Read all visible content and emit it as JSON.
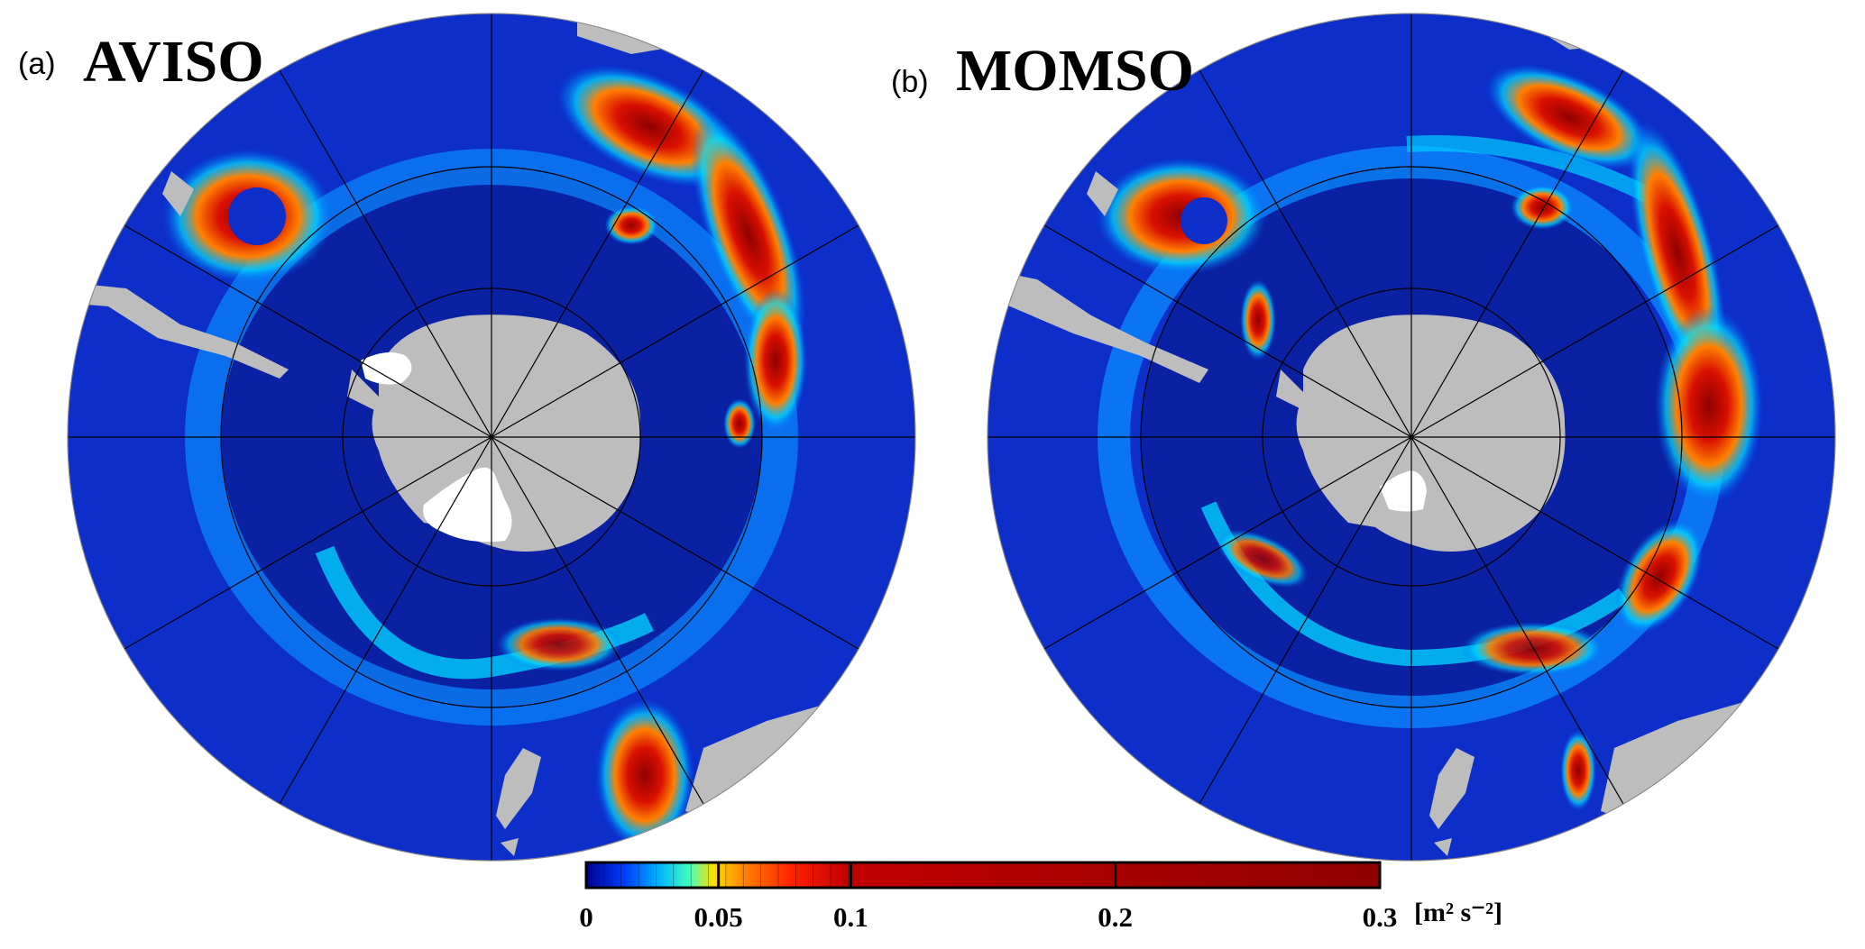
{
  "panels": [
    {
      "letter": "(a)",
      "name": "AVISO"
    },
    {
      "letter": "(b)",
      "name": "MOMSO"
    }
  ],
  "colorbar": {
    "ticks": [
      "0",
      "0.05",
      "0.1",
      "0.2",
      "0.3"
    ],
    "tick_values": [
      0,
      0.05,
      0.1,
      0.2,
      0.3
    ],
    "range": [
      0,
      0.3
    ],
    "unit": "[m² s⁻²]",
    "colors": {
      "low": "#00008f",
      "mid_low": "#0060ff",
      "mid": "#00e0ff",
      "mid_high": "#ffe000",
      "high": "#ff3000",
      "max": "#8f0000"
    }
  },
  "map_colors": {
    "ocean_background": "#0d2ec9",
    "ocean_deep": "#0a1f9c",
    "land": "#bdbdbd",
    "ice_shelf": "#ffffff"
  }
}
